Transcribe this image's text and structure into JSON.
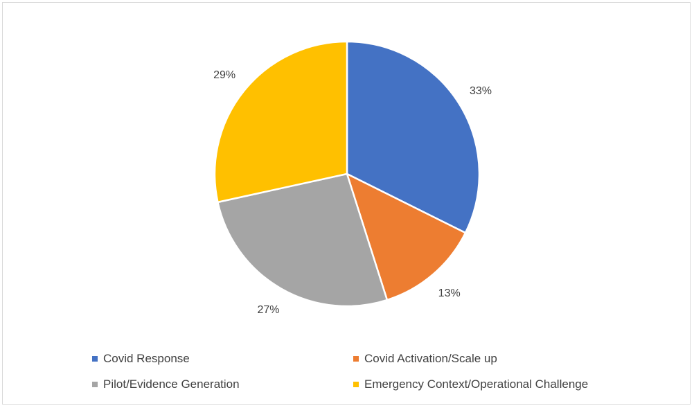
{
  "chart_data": {
    "type": "pie",
    "title": "",
    "categories": [
      "Covid Response",
      "Covid Activation/Scale up",
      "Pilot/Evidence Generation",
      "Emergency Context/Operational Challenge"
    ],
    "values": [
      33,
      13,
      27,
      29
    ],
    "labels": [
      "33%",
      "13%",
      "27%",
      "29%"
    ],
    "colors": [
      "#4472C4",
      "#ED7D31",
      "#A5A5A5",
      "#FFC000"
    ],
    "legend": "bottom"
  }
}
